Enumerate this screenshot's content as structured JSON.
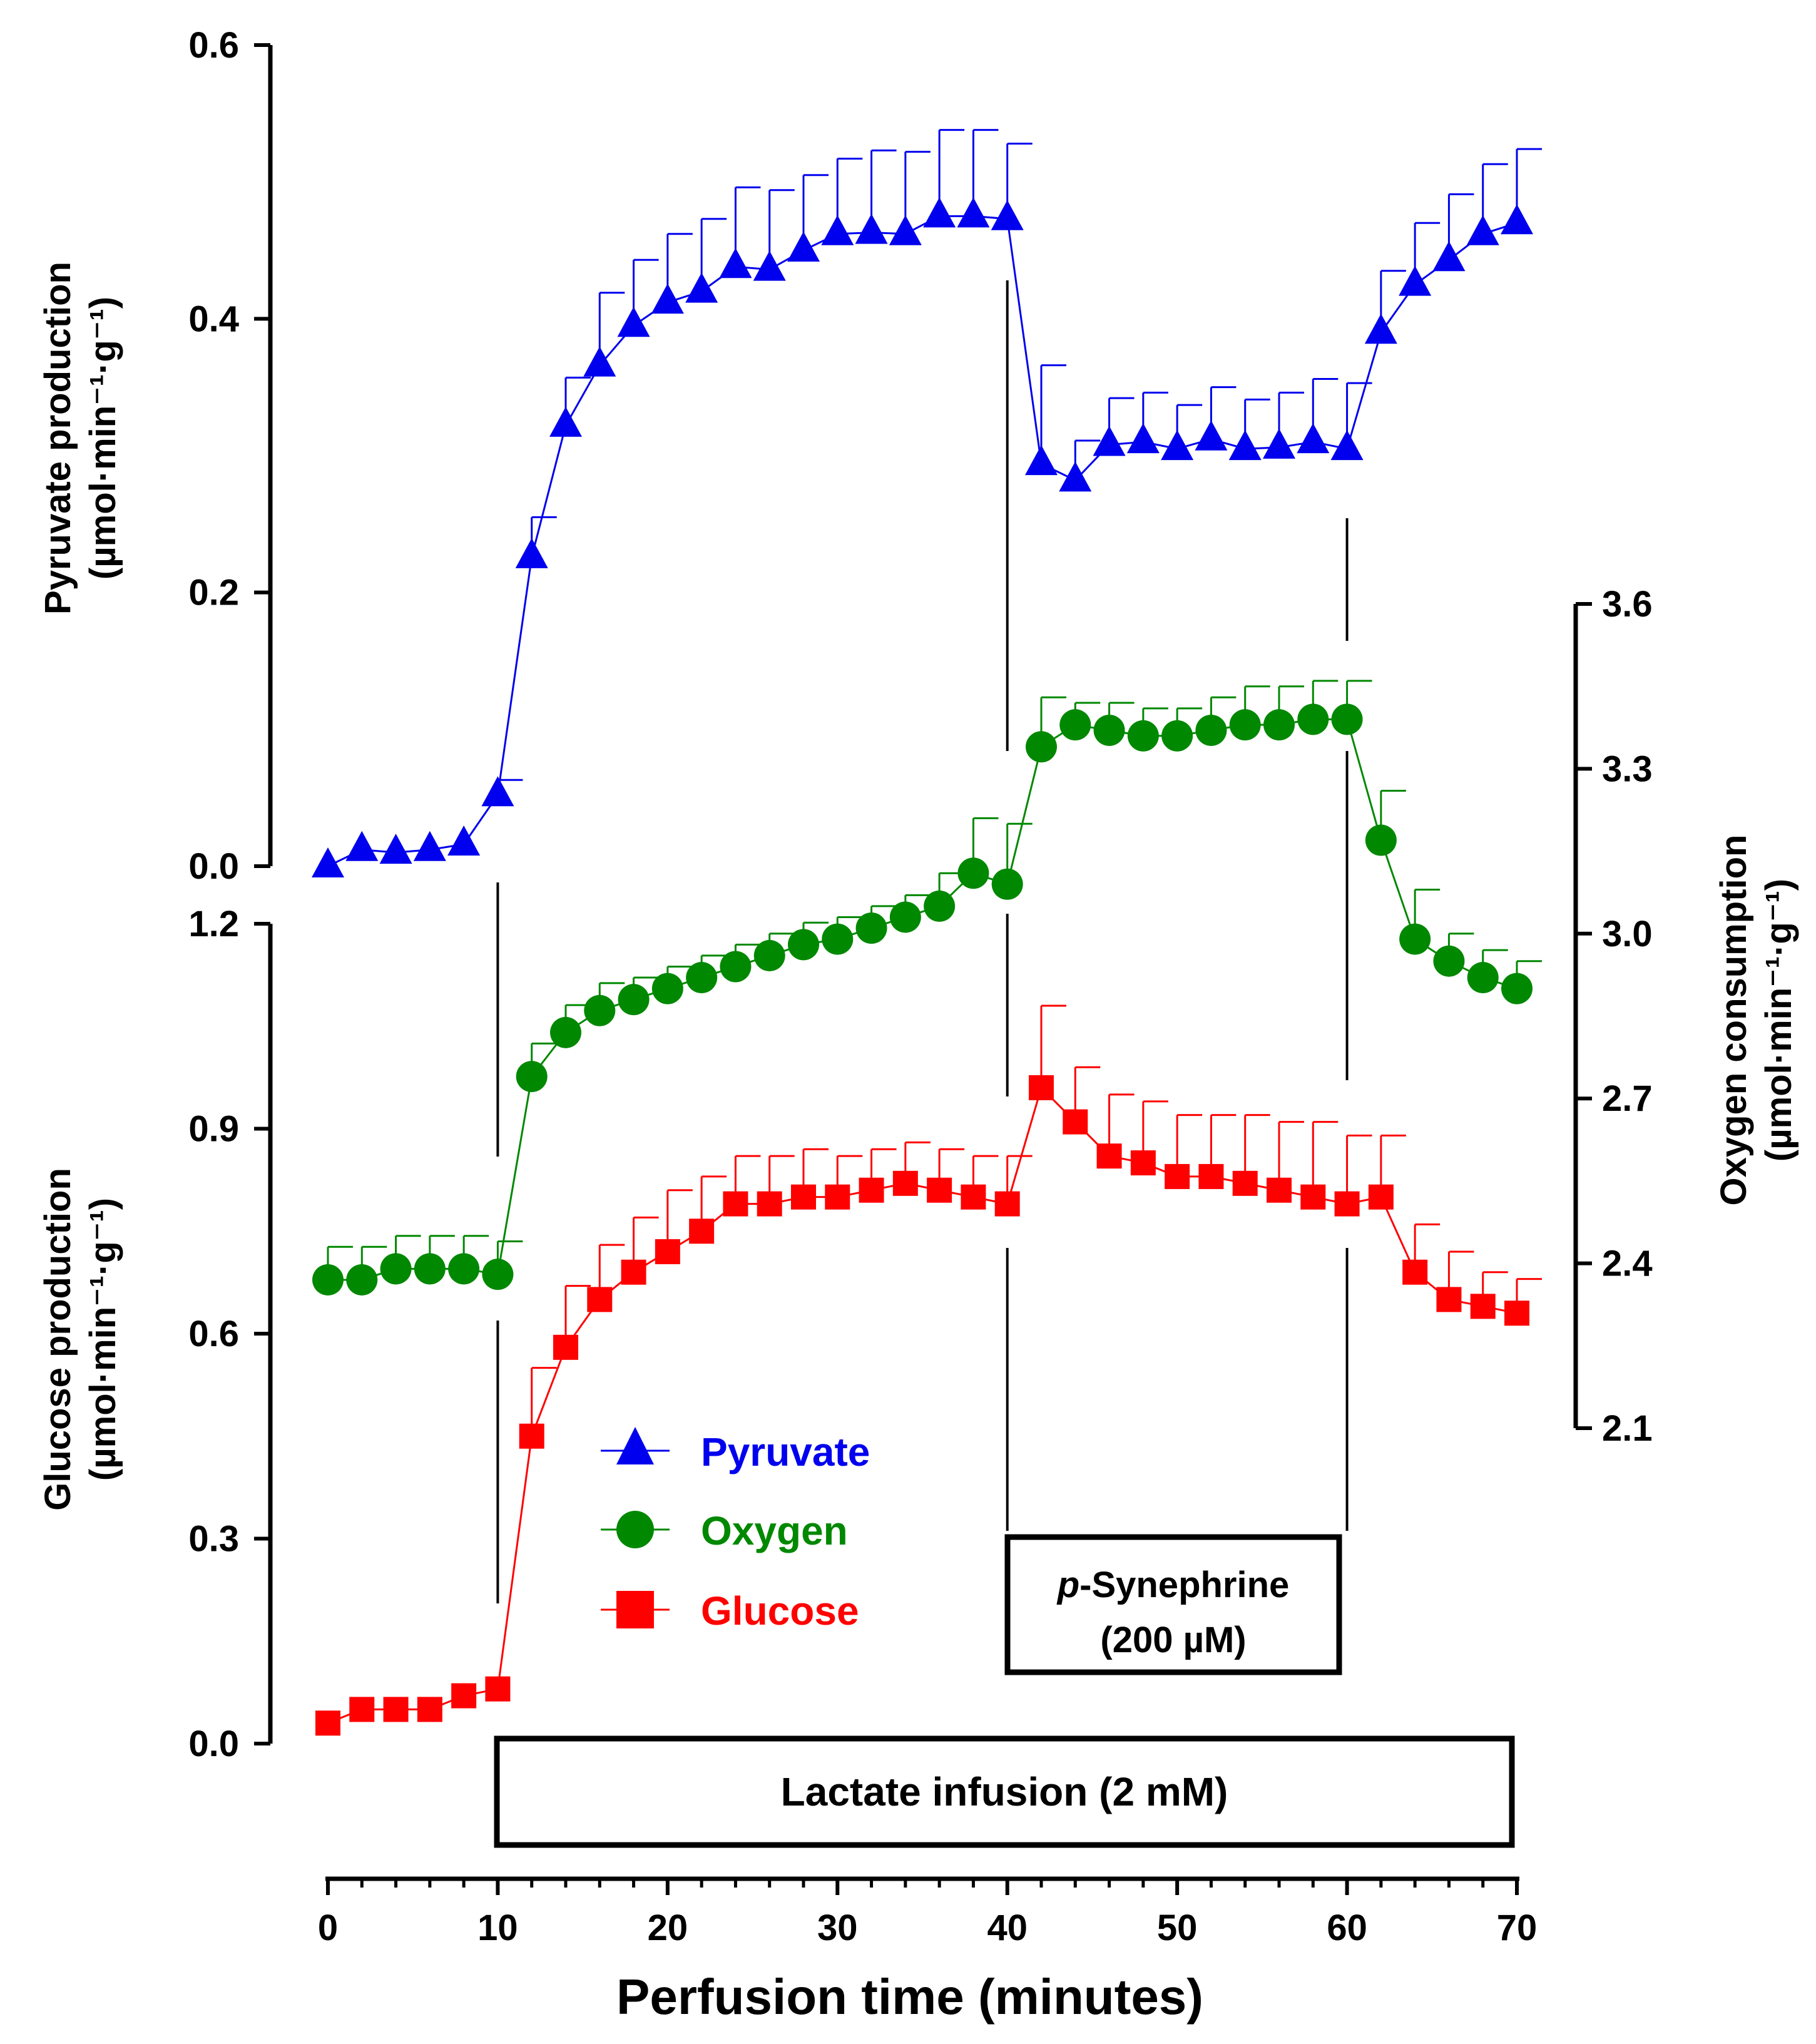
{
  "chart_data": {
    "type": "line",
    "xlabel": "Perfusion time (minutes)",
    "xlim": [
      0,
      70
    ],
    "xticks": [
      0,
      10,
      20,
      30,
      40,
      50,
      60,
      70
    ],
    "x": [
      0,
      2,
      4,
      6,
      8,
      10,
      12,
      14,
      16,
      18,
      20,
      22,
      24,
      26,
      28,
      30,
      32,
      34,
      36,
      38,
      40,
      42,
      44,
      46,
      48,
      50,
      52,
      54,
      56,
      58,
      60,
      62,
      64,
      66,
      68,
      70
    ],
    "top_axis": {
      "label_line1": "Pyruvate production",
      "label_line2": "(µmol·min⁻¹·g⁻¹)",
      "ylim": [
        0,
        0.6
      ],
      "ticks": [
        "0.0",
        "0.2",
        "0.4",
        "0.6"
      ],
      "tick_values": [
        0,
        0.2,
        0.4,
        0.6
      ]
    },
    "bottom_axis": {
      "label_line1": "Glucose production",
      "label_line2": "(µmol·min⁻¹·g⁻¹)",
      "ylim": [
        0,
        1.2
      ],
      "ticks": [
        "0.0",
        "0.3",
        "0.6",
        "0.9",
        "1.2"
      ],
      "tick_values": [
        0,
        0.3,
        0.6,
        0.9,
        1.2
      ]
    },
    "right_axis": {
      "label_line1": "Oxygen consumption",
      "label_line2": "(µmol·min⁻¹·g⁻¹)",
      "ylim": [
        2.1,
        3.6
      ],
      "ticks": [
        "2.1",
        "2.4",
        "2.7",
        "3.0",
        "3.3",
        "3.6"
      ],
      "tick_values": [
        2.1,
        2.4,
        2.7,
        3.0,
        3.3,
        3.6
      ]
    },
    "series": [
      {
        "name": "Pyruvate",
        "axis": "top",
        "color": "#0000ee",
        "marker": "triangle",
        "values": [
          0.0,
          0.012,
          0.01,
          0.012,
          0.016,
          0.052,
          0.226,
          0.322,
          0.366,
          0.395,
          0.412,
          0.42,
          0.438,
          0.436,
          0.45,
          0.462,
          0.463,
          0.462,
          0.475,
          0.475,
          0.473,
          0.294,
          0.282,
          0.308,
          0.31,
          0.305,
          0.312,
          0.305,
          0.306,
          0.31,
          0.305,
          0.39,
          0.425,
          0.443,
          0.462,
          0.47
        ],
        "errors": [
          0,
          0,
          0,
          0,
          0,
          0.011,
          0.029,
          0.035,
          0.053,
          0.048,
          0.05,
          0.053,
          0.058,
          0.058,
          0.055,
          0.055,
          0.06,
          0.06,
          0.063,
          0.063,
          0.055,
          0.072,
          0.029,
          0.034,
          0.036,
          0.032,
          0.038,
          0.036,
          0.04,
          0.046,
          0.048,
          0.045,
          0.045,
          0.048,
          0.051,
          0.054
        ]
      },
      {
        "name": "Oxygen",
        "axis": "right",
        "color": "#008800",
        "marker": "circle",
        "values": [
          2.37,
          2.37,
          2.39,
          2.39,
          2.39,
          2.38,
          2.74,
          2.82,
          2.86,
          2.88,
          2.9,
          2.92,
          2.94,
          2.96,
          2.98,
          2.99,
          3.01,
          3.03,
          3.05,
          3.11,
          3.09,
          3.34,
          3.38,
          3.37,
          3.36,
          3.36,
          3.37,
          3.38,
          3.38,
          3.39,
          3.39,
          3.17,
          2.99,
          2.95,
          2.92,
          2.9
        ],
        "errors": [
          0.06,
          0.06,
          0.06,
          0.06,
          0.06,
          0.06,
          0.06,
          0.05,
          0.05,
          0.04,
          0.04,
          0.04,
          0.04,
          0.04,
          0.04,
          0.04,
          0.04,
          0.04,
          0.06,
          0.1,
          0.11,
          0.09,
          0.04,
          0.05,
          0.05,
          0.05,
          0.06,
          0.07,
          0.07,
          0.07,
          0.07,
          0.09,
          0.09,
          0.05,
          0.05,
          0.05
        ]
      },
      {
        "name": "Glucose",
        "axis": "bottom",
        "color": "#ff0000",
        "marker": "square",
        "values": [
          0.03,
          0.05,
          0.05,
          0.05,
          0.07,
          0.08,
          0.45,
          0.58,
          0.65,
          0.69,
          0.72,
          0.75,
          0.79,
          0.79,
          0.8,
          0.8,
          0.81,
          0.82,
          0.81,
          0.8,
          0.79,
          0.96,
          0.91,
          0.86,
          0.85,
          0.83,
          0.83,
          0.82,
          0.81,
          0.8,
          0.79,
          0.8,
          0.69,
          0.65,
          0.64,
          0.63
        ],
        "errors": [
          0,
          0,
          0,
          0,
          0,
          0,
          0.1,
          0.09,
          0.08,
          0.08,
          0.09,
          0.08,
          0.07,
          0.07,
          0.07,
          0.06,
          0.06,
          0.06,
          0.06,
          0.06,
          0.07,
          0.12,
          0.08,
          0.09,
          0.09,
          0.09,
          0.09,
          0.1,
          0.1,
          0.11,
          0.1,
          0.09,
          0.07,
          0.07,
          0.05,
          0.05
        ]
      }
    ],
    "legend": {
      "position": "center-left",
      "entries": [
        "Pyruvate",
        "Oxygen",
        "Glucose"
      ]
    },
    "annotations": {
      "drug_label_italic": "p",
      "drug_label_rest": "-Synephrine",
      "drug_dose": "(200 µM)",
      "lactate": "Lactate infusion (2 mM)",
      "drug_interval": [
        40,
        60
      ],
      "lactate_interval": [
        10,
        70
      ]
    }
  }
}
